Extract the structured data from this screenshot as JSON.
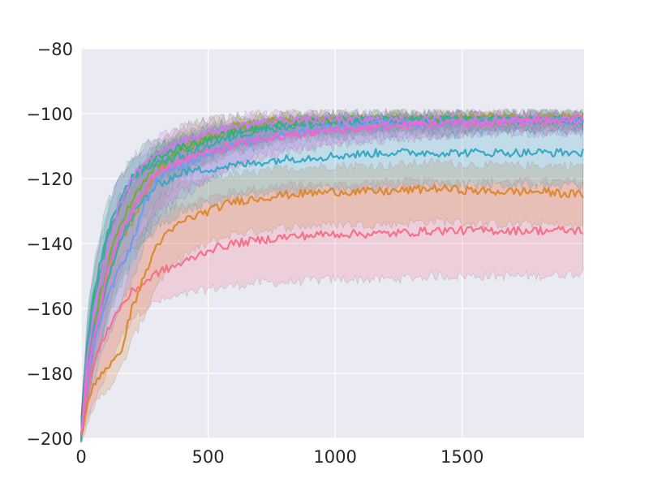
{
  "chart_data": {
    "type": "line",
    "title": "",
    "xlabel": "",
    "ylabel": "",
    "xlim": [
      0,
      1980
    ],
    "ylim": [
      -200,
      -80
    ],
    "x_ticks": [
      0,
      500,
      1000,
      1500
    ],
    "y_ticks": [
      -80,
      -100,
      -120,
      -140,
      -160,
      -180,
      -200
    ],
    "x_tick_labels": [
      "0",
      "500",
      "1000",
      "1500"
    ],
    "y_tick_labels": [
      "−80",
      "−100",
      "−120",
      "−140",
      "−160",
      "−180",
      "−200"
    ],
    "grid": true,
    "legend": "none",
    "background": "#eaeaf2",
    "x": [
      0,
      25,
      50,
      100,
      150,
      200,
      250,
      300,
      400,
      500,
      600,
      700,
      800,
      1000,
      1200,
      1400,
      1600,
      1800,
      1980
    ],
    "series": [
      {
        "color": "#f77189",
        "values": [
          -200,
          -185,
          -177,
          -167,
          -160,
          -155,
          -152,
          -149,
          -146,
          -142,
          -140,
          -139,
          -138,
          -137,
          -137,
          -136,
          -136,
          -136,
          -136
        ],
        "band_low": [
          -200,
          -195,
          -190,
          -180,
          -170,
          -163,
          -160,
          -158,
          -156,
          -154,
          -153,
          -152,
          -152,
          -151,
          -151,
          -150,
          -150,
          -150,
          -149
        ],
        "band_high": [
          -195,
          -175,
          -165,
          -152,
          -145,
          -140,
          -135,
          -132,
          -128,
          -126,
          -124,
          -123,
          -122,
          -122,
          -121,
          -121,
          -121,
          -121,
          -121
        ]
      },
      {
        "color": "#dc8932",
        "values": [
          -200,
          -190,
          -183,
          -178,
          -175,
          -160,
          -150,
          -140,
          -133,
          -130,
          -127,
          -126,
          -125,
          -124,
          -124,
          -123,
          -124,
          -124,
          -125
        ],
        "band_low": [
          -200,
          -195,
          -190,
          -185,
          -180,
          -170,
          -162,
          -152,
          -144,
          -140,
          -137,
          -136,
          -135,
          -134,
          -134,
          -133,
          -134,
          -134,
          -135
        ],
        "band_high": [
          -193,
          -182,
          -174,
          -168,
          -160,
          -146,
          -136,
          -126,
          -122,
          -120,
          -119,
          -118,
          -117,
          -116,
          -116,
          -115,
          -116,
          -116,
          -116
        ]
      },
      {
        "color": "#ae9d31",
        "values": [
          -200,
          -180,
          -168,
          -152,
          -140,
          -133,
          -125,
          -118,
          -110,
          -107,
          -104,
          -103,
          -102,
          -102,
          -102,
          -102,
          -101,
          -101,
          -101
        ],
        "band_low": [
          -200,
          -188,
          -178,
          -164,
          -152,
          -145,
          -138,
          -130,
          -120,
          -115,
          -112,
          -110,
          -108,
          -107,
          -106,
          -106,
          -105,
          -105,
          -105
        ],
        "band_high": [
          -193,
          -172,
          -158,
          -142,
          -130,
          -122,
          -116,
          -110,
          -104,
          -102,
          -101,
          -100,
          -100,
          -100,
          -100,
          -100,
          -100,
          -100,
          -100
        ]
      },
      {
        "color": "#77ab31",
        "values": [
          -200,
          -178,
          -165,
          -148,
          -135,
          -127,
          -121,
          -116,
          -111,
          -108,
          -105,
          -104,
          -103,
          -102,
          -102,
          -102,
          -102,
          -102,
          -102
        ],
        "band_low": [
          -200,
          -186,
          -174,
          -158,
          -146,
          -138,
          -132,
          -126,
          -118,
          -114,
          -110,
          -108,
          -106,
          -105,
          -105,
          -104,
          -104,
          -104,
          -104
        ],
        "band_high": [
          -193,
          -170,
          -156,
          -138,
          -126,
          -119,
          -114,
          -110,
          -106,
          -104,
          -102,
          -101,
          -101,
          -100,
          -100,
          -100,
          -100,
          -100,
          -100
        ]
      },
      {
        "color": "#33b07a",
        "values": [
          -200,
          -172,
          -158,
          -140,
          -128,
          -120,
          -116,
          -113,
          -110,
          -108,
          -106,
          -104,
          -103,
          -102,
          -102,
          -102,
          -102,
          -102,
          -102
        ],
        "band_low": [
          -200,
          -182,
          -170,
          -152,
          -140,
          -130,
          -124,
          -120,
          -116,
          -113,
          -110,
          -108,
          -107,
          -106,
          -105,
          -105,
          -105,
          -105,
          -104
        ],
        "band_high": [
          -193,
          -163,
          -148,
          -130,
          -120,
          -114,
          -110,
          -108,
          -106,
          -104,
          -103,
          -102,
          -101,
          -100,
          -100,
          -100,
          -100,
          -100,
          -100
        ]
      },
      {
        "color": "#36ada4",
        "values": [
          -200,
          -170,
          -155,
          -138,
          -127,
          -120,
          -117,
          -115,
          -113,
          -110,
          -107,
          -105,
          -104,
          -103,
          -102,
          -102,
          -102,
          -102,
          -102
        ],
        "band_low": [
          -200,
          -180,
          -166,
          -150,
          -138,
          -130,
          -125,
          -122,
          -118,
          -115,
          -112,
          -110,
          -108,
          -107,
          -106,
          -106,
          -106,
          -105,
          -105
        ],
        "band_high": [
          -193,
          -162,
          -146,
          -128,
          -120,
          -115,
          -112,
          -110,
          -108,
          -106,
          -104,
          -103,
          -102,
          -101,
          -101,
          -101,
          -101,
          -101,
          -101
        ]
      },
      {
        "color": "#38a9c5",
        "values": [
          -200,
          -180,
          -167,
          -152,
          -140,
          -132,
          -126,
          -122,
          -118,
          -117,
          -116,
          -115,
          -114,
          -113,
          -112,
          -112,
          -112,
          -112,
          -112
        ],
        "band_low": [
          -200,
          -190,
          -178,
          -164,
          -154,
          -146,
          -140,
          -135,
          -130,
          -128,
          -126,
          -125,
          -124,
          -123,
          -123,
          -122,
          -122,
          -122,
          -122
        ],
        "band_high": [
          -193,
          -170,
          -156,
          -140,
          -128,
          -120,
          -116,
          -112,
          -108,
          -107,
          -106,
          -105,
          -104,
          -104,
          -104,
          -104,
          -104,
          -104,
          -104
        ]
      },
      {
        "color": "#6e9bf4",
        "values": [
          -200,
          -182,
          -170,
          -158,
          -148,
          -140,
          -128,
          -120,
          -116,
          -112,
          -110,
          -108,
          -106,
          -104,
          -103,
          -103,
          -102,
          -102,
          -102
        ],
        "band_low": [
          -200,
          -192,
          -182,
          -170,
          -160,
          -152,
          -140,
          -132,
          -126,
          -120,
          -116,
          -113,
          -111,
          -109,
          -108,
          -107,
          -106,
          -106,
          -106
        ],
        "band_high": [
          -193,
          -173,
          -160,
          -146,
          -136,
          -128,
          -118,
          -112,
          -108,
          -105,
          -104,
          -103,
          -102,
          -101,
          -101,
          -100,
          -100,
          -100,
          -100
        ]
      },
      {
        "color": "#cc7af4",
        "values": [
          -200,
          -175,
          -160,
          -142,
          -128,
          -120,
          -116,
          -112,
          -108,
          -106,
          -104,
          -103,
          -102,
          -102,
          -102,
          -102,
          -102,
          -102,
          -102
        ],
        "band_low": [
          -200,
          -186,
          -172,
          -154,
          -140,
          -130,
          -124,
          -120,
          -115,
          -112,
          -109,
          -107,
          -106,
          -105,
          -104,
          -104,
          -104,
          -104,
          -104
        ],
        "band_high": [
          -193,
          -166,
          -150,
          -132,
          -120,
          -114,
          -110,
          -107,
          -104,
          -102,
          -101,
          -100,
          -100,
          -100,
          -100,
          -100,
          -100,
          -100,
          -100
        ]
      },
      {
        "color": "#f565cc",
        "values": [
          -200,
          -180,
          -168,
          -150,
          -138,
          -130,
          -124,
          -118,
          -114,
          -112,
          -110,
          -108,
          -107,
          -105,
          -104,
          -103,
          -103,
          -102,
          -102
        ],
        "band_low": [
          -200,
          -190,
          -178,
          -162,
          -150,
          -142,
          -136,
          -130,
          -124,
          -120,
          -117,
          -114,
          -112,
          -110,
          -108,
          -107,
          -106,
          -106,
          -105
        ],
        "band_high": [
          -193,
          -172,
          -158,
          -140,
          -128,
          -121,
          -116,
          -112,
          -108,
          -106,
          -104,
          -103,
          -102,
          -101,
          -101,
          -100,
          -100,
          -100,
          -100
        ]
      }
    ]
  }
}
